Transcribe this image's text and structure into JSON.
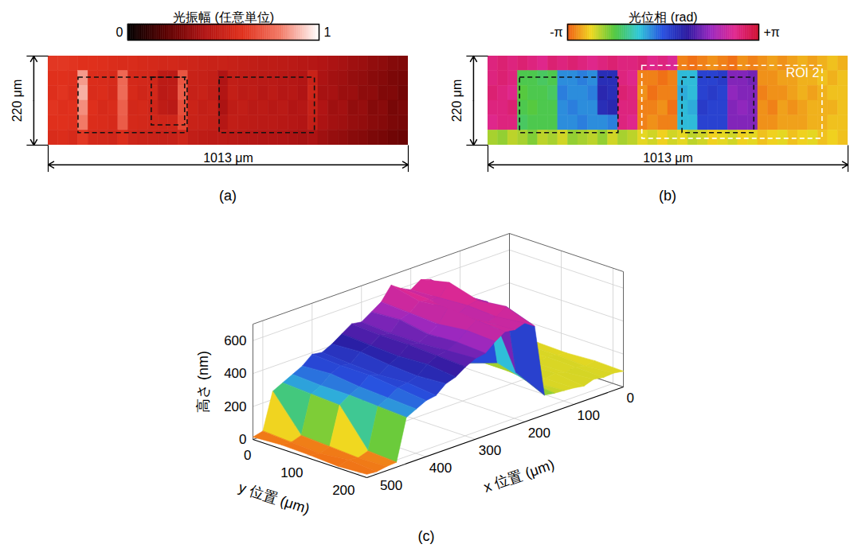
{
  "chart_data": [
    {
      "type": "heatmap",
      "title": "(a)",
      "colorbar": {
        "label": "光振幅 (任意単位)",
        "range": [
          0,
          1
        ],
        "ticks": [
          0,
          1
        ]
      },
      "xlim": [
        0,
        1013
      ],
      "ylim": [
        0,
        220
      ],
      "tick_labels": false,
      "dimension_labels": {
        "x": "1013 μm",
        "y": "220 μm"
      },
      "regions": [
        {
          "x1": 85,
          "x2": 392,
          "y1": 53,
          "y2": 190
        },
        {
          "x1": 291,
          "x2": 385,
          "y1": 53,
          "y2": 171
        },
        {
          "x1": 482,
          "x2": 750,
          "y1": 53,
          "y2": 190
        }
      ],
      "cells": [
        [
          0.62,
          0.62,
          0.61,
          0.6,
          0.6,
          0.59,
          0.58,
          0.57,
          0.57,
          0.56,
          0.55,
          0.54,
          0.54,
          0.53,
          0.52,
          0.51,
          0.5,
          0.5,
          0.49,
          0.48,
          0.47,
          0.46,
          0.46,
          0.45,
          0.44,
          0.43,
          0.42,
          0.41,
          0.39,
          0.38,
          0.36,
          0.35,
          0.33,
          0.32,
          0.3,
          0.29
        ],
        [
          0.6,
          0.6,
          0.59,
          0.85,
          0.58,
          0.57,
          0.56,
          0.75,
          0.55,
          0.54,
          0.53,
          0.45,
          0.45,
          0.7,
          0.5,
          0.49,
          0.48,
          0.4,
          0.47,
          0.46,
          0.45,
          0.44,
          0.44,
          0.43,
          0.42,
          0.41,
          0.5,
          0.39,
          0.37,
          0.36,
          0.34,
          0.33,
          0.31,
          0.3,
          0.28,
          0.27
        ],
        [
          0.59,
          0.61,
          0.58,
          0.88,
          0.57,
          0.58,
          0.55,
          0.76,
          0.56,
          0.53,
          0.54,
          0.44,
          0.46,
          0.72,
          0.49,
          0.5,
          0.47,
          0.41,
          0.48,
          0.45,
          0.46,
          0.43,
          0.45,
          0.42,
          0.43,
          0.4,
          0.52,
          0.38,
          0.38,
          0.35,
          0.35,
          0.32,
          0.32,
          0.29,
          0.29,
          0.26
        ],
        [
          0.61,
          0.59,
          0.6,
          0.83,
          0.59,
          0.56,
          0.57,
          0.73,
          0.54,
          0.55,
          0.52,
          0.46,
          0.44,
          0.68,
          0.51,
          0.48,
          0.49,
          0.39,
          0.46,
          0.47,
          0.44,
          0.45,
          0.43,
          0.44,
          0.41,
          0.42,
          0.49,
          0.4,
          0.36,
          0.37,
          0.33,
          0.34,
          0.3,
          0.31,
          0.27,
          0.28
        ],
        [
          0.6,
          0.6,
          0.59,
          0.8,
          0.58,
          0.57,
          0.56,
          0.72,
          0.55,
          0.54,
          0.53,
          0.52,
          0.52,
          0.66,
          0.5,
          0.49,
          0.48,
          0.42,
          0.47,
          0.46,
          0.45,
          0.44,
          0.44,
          0.43,
          0.42,
          0.41,
          0.48,
          0.39,
          0.37,
          0.36,
          0.34,
          0.33,
          0.31,
          0.3,
          0.28,
          0.27
        ],
        [
          0.57,
          0.58,
          0.56,
          0.62,
          0.55,
          0.54,
          0.53,
          0.58,
          0.52,
          0.51,
          0.5,
          0.49,
          0.49,
          0.52,
          0.47,
          0.46,
          0.45,
          0.45,
          0.44,
          0.43,
          0.42,
          0.41,
          0.41,
          0.4,
          0.39,
          0.38,
          0.39,
          0.36,
          0.34,
          0.33,
          0.31,
          0.3,
          0.28,
          0.27,
          0.25,
          0.24
        ]
      ]
    },
    {
      "type": "heatmap",
      "title": "(b)",
      "colorbar": {
        "label": "光位相 (rad)",
        "range": [
          -3.14159,
          3.14159
        ],
        "ticks": [
          {
            "value": -3.14159,
            "label": "-π"
          },
          {
            "value": 3.14159,
            "label": "+π"
          }
        ]
      },
      "xlim": [
        0,
        1013
      ],
      "ylim": [
        0,
        220
      ],
      "tick_labels": false,
      "dimension_labels": {
        "x": "1013 μm",
        "y": "220 μm"
      },
      "regions": [
        {
          "x1": 90,
          "x2": 367,
          "y1": 53,
          "y2": 190
        },
        {
          "x1": 547,
          "x2": 749,
          "y1": 53,
          "y2": 190
        }
      ],
      "roi": {
        "label": "ROI 2",
        "x1": 434,
        "x2": 941,
        "y1": 24,
        "y2": 204
      },
      "cells": [
        [
          2.5,
          2.6,
          2.5,
          2.6,
          2.5,
          2.4,
          2.6,
          2.5,
          2.6,
          2.5,
          2.4,
          2.5,
          2.6,
          2.5,
          2.5,
          2.6,
          2.4,
          2.5,
          2.3,
          -2.9,
          -3.0,
          -2.9,
          -2.8,
          -2.9,
          -3.0,
          -2.8,
          -2.9,
          -2.8,
          -2.7,
          -2.8,
          -2.7,
          -2.6,
          -2.7,
          -2.6,
          -2.5,
          -2.6
        ],
        [
          2.5,
          2.6,
          2.5,
          -1.5,
          -1.5,
          -1.4,
          -1.5,
          -0.4,
          -0.4,
          -0.3,
          -0.4,
          0.5,
          0.5,
          2.5,
          2.4,
          -2.9,
          -2.9,
          -3.0,
          -2.9,
          -0.7,
          -0.7,
          0.2,
          0.2,
          0.3,
          1.4,
          1.4,
          1.3,
          -2.8,
          -2.8,
          -2.7,
          -2.7,
          -2.6,
          -2.6,
          -2.5,
          -2.6,
          -2.5
        ],
        [
          2.6,
          2.5,
          2.4,
          -1.6,
          -1.5,
          -1.5,
          -1.4,
          -0.3,
          -0.4,
          -0.4,
          -0.3,
          0.6,
          0.5,
          2.6,
          2.5,
          -2.8,
          -3.0,
          -2.9,
          -2.9,
          -0.6,
          -0.7,
          0.2,
          0.3,
          0.2,
          1.5,
          1.4,
          1.4,
          -2.9,
          -2.8,
          -2.8,
          -2.7,
          -2.6,
          -2.7,
          -2.6,
          -2.5,
          -2.5
        ],
        [
          2.5,
          2.5,
          2.6,
          -1.5,
          -1.6,
          -1.5,
          -1.5,
          -0.4,
          -0.3,
          -0.4,
          -0.4,
          0.5,
          0.6,
          2.5,
          2.5,
          -2.9,
          -2.9,
          -2.8,
          -3.0,
          -0.7,
          -0.6,
          0.3,
          0.2,
          0.2,
          1.4,
          1.5,
          1.4,
          -2.8,
          -2.9,
          -2.7,
          -2.8,
          -2.7,
          -2.6,
          -2.6,
          -2.6,
          -2.5
        ],
        [
          2.4,
          2.5,
          2.5,
          -1.4,
          -1.5,
          -1.5,
          -1.5,
          -0.4,
          -0.4,
          -0.3,
          -0.4,
          -0.4,
          -0.3,
          2.5,
          2.4,
          -2.9,
          -2.8,
          -2.9,
          -2.9,
          -0.7,
          -0.7,
          0.2,
          0.2,
          0.2,
          1.4,
          1.4,
          1.4,
          -2.8,
          -2.8,
          -2.7,
          -2.7,
          -2.7,
          -2.6,
          -2.6,
          -2.5,
          -2.5
        ],
        [
          -2.0,
          -1.9,
          -2.1,
          -2.0,
          -1.8,
          -2.1,
          -2.0,
          -2.2,
          -1.9,
          -2.0,
          -2.1,
          -1.9,
          -2.2,
          -2.0,
          -2.1,
          -2.3,
          -2.2,
          -2.4,
          -2.2,
          -2.3,
          -2.1,
          -2.2,
          -2.4,
          -2.3,
          -2.2,
          -2.4,
          -2.3,
          -2.5,
          -2.4,
          -2.3,
          -2.5,
          -2.4,
          -2.3,
          -2.5,
          -2.4,
          -2.5
        ]
      ]
    },
    {
      "type": "surface",
      "title": "(c)",
      "x_label": "x 位置 (μm)",
      "y_label": "y 位置 (μm)",
      "z_label": "高さ (nm)",
      "xlim": [
        0,
        520
      ],
      "xticks": [
        0,
        100,
        200,
        300,
        400,
        500
      ],
      "ylim": [
        0,
        220
      ],
      "yticks": [
        0,
        100,
        200
      ],
      "zlim": [
        0,
        700
      ],
      "zticks": [
        0,
        200,
        400,
        600
      ],
      "grid": true,
      "x": [
        0,
        20,
        40,
        60,
        80,
        100,
        120,
        140,
        160,
        180,
        200,
        220,
        240,
        260,
        280,
        300,
        320,
        340,
        360,
        380,
        400,
        420,
        440,
        460,
        480,
        500,
        520
      ],
      "y": [
        0,
        55,
        110,
        165,
        220
      ],
      "z": [
        [
          80,
          95,
          105,
          90,
          100,
          110,
          95,
          150,
          590,
          610,
          570,
          600,
          640,
          560,
          520,
          480,
          490,
          450,
          410,
          380,
          390,
          340,
          310,
          280,
          250,
          30,
          15
        ],
        [
          95,
          100,
          90,
          105,
          95,
          100,
          110,
          120,
          560,
          650,
          580,
          590,
          600,
          550,
          530,
          470,
          480,
          440,
          420,
          370,
          380,
          350,
          300,
          270,
          40,
          20,
          25
        ],
        [
          90,
          100,
          110,
          90,
          105,
          95,
          110,
          180,
          570,
          600,
          590,
          560,
          620,
          540,
          500,
          470,
          480,
          430,
          400,
          360,
          380,
          330,
          300,
          260,
          30,
          10,
          20
        ],
        [
          100,
          90,
          105,
          95,
          110,
          100,
          95,
          130,
          200,
          620,
          580,
          570,
          600,
          560,
          510,
          480,
          470,
          440,
          390,
          370,
          360,
          320,
          290,
          40,
          20,
          30,
          10
        ],
        [
          95,
          105,
          100,
          110,
          90,
          100,
          105,
          110,
          120,
          560,
          600,
          580,
          590,
          550,
          500,
          490,
          460,
          420,
          400,
          350,
          340,
          310,
          280,
          30,
          25,
          15,
          20
        ]
      ]
    }
  ]
}
